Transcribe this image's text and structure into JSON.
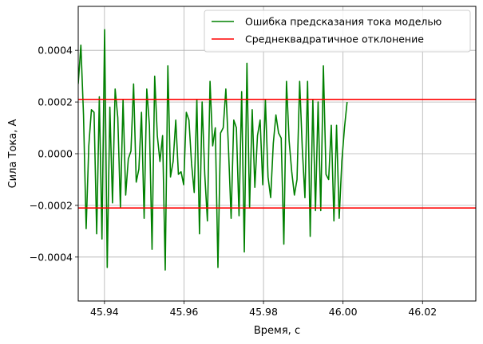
{
  "chart_data": {
    "type": "line",
    "title": "",
    "xlabel": "Время, с",
    "ylabel": "Сила Тока, А",
    "xlim": [
      45.9334,
      46.0334
    ],
    "ylim": [
      -0.00057,
      0.00057
    ],
    "grid": true,
    "legend_position": "top-right",
    "x_ticks": [
      45.94,
      45.96,
      45.98,
      46.0,
      46.02
    ],
    "x_tick_labels": [
      "45.94",
      "45.96",
      "45.98",
      "46.00",
      "46.02"
    ],
    "y_ticks": [
      -0.0004,
      -0.0002,
      0.0,
      0.0002,
      0.0004
    ],
    "y_tick_labels": [
      "−0.0004",
      "−0.0002",
      "0.0000",
      "0.0002",
      "0.0004"
    ],
    "series": [
      {
        "name": "Ошибка предсказания тока моделью",
        "color": "#008000",
        "x_start": 45.9334,
        "x_step": 0.000663,
        "values": [
          0.00027,
          0.00042,
          0.00015,
          -0.00029,
          3e-05,
          0.00017,
          0.00016,
          -0.00031,
          0.00022,
          -0.00033,
          0.00048,
          -0.00044,
          0.00018,
          -0.00019,
          0.00025,
          0.00014,
          -0.00021,
          0.00021,
          -0.00016,
          -2e-05,
          1e-05,
          0.00027,
          -0.00011,
          -6e-05,
          0.00016,
          -0.00025,
          0.00025,
          0.00011,
          -0.00037,
          0.0003,
          7e-05,
          -3e-05,
          7e-05,
          -0.00045,
          0.00034,
          -9e-05,
          -3e-05,
          0.00013,
          -8e-05,
          -7e-05,
          -0.00012,
          0.00016,
          0.00013,
          -4e-05,
          -0.00015,
          0.00021,
          -0.00031,
          0.0002,
          -8e-05,
          -0.00026,
          0.00028,
          3e-05,
          0.0001,
          -0.00044,
          8e-05,
          0.0001,
          0.00025,
          2e-05,
          -0.00025,
          0.00013,
          0.0001,
          -0.00024,
          0.00024,
          -0.00038,
          0.00035,
          -0.00021,
          0.00017,
          -0.00013,
          7e-05,
          0.00013,
          -0.00012,
          0.00021,
          -9e-05,
          -0.00017,
          4e-05,
          0.00015,
          8e-05,
          6e-05,
          -0.00035,
          0.00028,
          5e-05,
          -7e-05,
          -0.00016,
          -0.0001,
          0.00028,
          2e-05,
          -0.00017,
          0.00028,
          -0.00032,
          0.00021,
          -0.00022,
          0.0002,
          -0.00022,
          0.00034,
          -8e-05,
          -0.0001,
          0.00011,
          -0.00026,
          0.00011,
          -0.00025,
          -3e-05,
          0.0001,
          0.0002
        ]
      },
      {
        "name": "Среднеквадратичное отклонение",
        "color": "#ff0000",
        "type": "hline",
        "levels": [
          0.00021,
          -0.00021
        ]
      }
    ]
  }
}
